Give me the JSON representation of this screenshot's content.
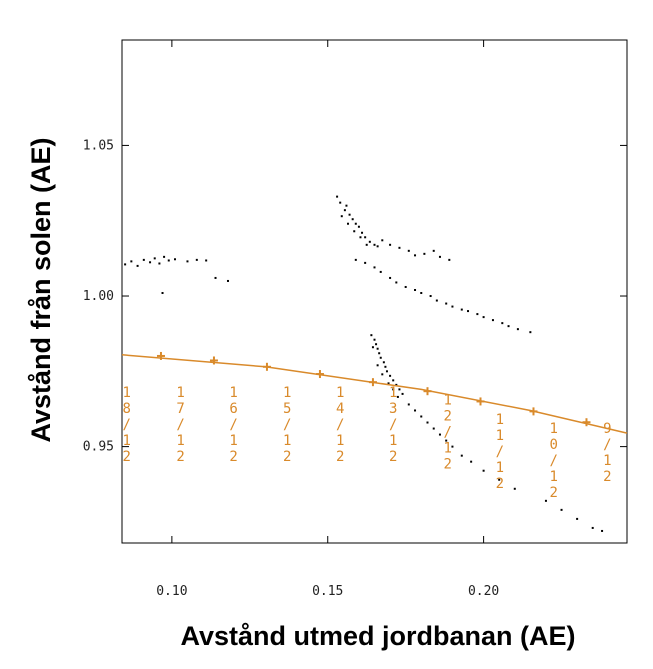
{
  "chart_data": {
    "type": "scatter",
    "title": "",
    "xlabel": "Avstånd utmed jordbanan (AE)",
    "ylabel": "Avstånd från solen (AE)",
    "xlim": [
      0.084,
      0.246
    ],
    "ylim": [
      0.918,
      1.085
    ],
    "xticks": [
      "0.10",
      "0.15",
      "0.20"
    ],
    "yticks": [
      "0.95",
      "1.00",
      "1.05"
    ],
    "grid": false,
    "accent_color": "#d98a2b",
    "point_color": "#000000",
    "resonance_line": {
      "x": [
        0.084,
        0.13,
        0.18,
        0.215,
        0.246
      ],
      "y": [
        0.9805,
        0.9765,
        0.969,
        0.962,
        0.9545
      ]
    },
    "resonances": [
      {
        "x": 0.0965,
        "y": 0.9801,
        "label": "18/12"
      },
      {
        "x": 0.1135,
        "y": 0.9786,
        "label": "17/12"
      },
      {
        "x": 0.1305,
        "y": 0.9765,
        "label": "16/12"
      },
      {
        "x": 0.1475,
        "y": 0.9741,
        "label": "15/12"
      },
      {
        "x": 0.1645,
        "y": 0.9714,
        "label": "14/12"
      },
      {
        "x": 0.182,
        "y": 0.9684,
        "label": "13/12"
      },
      {
        "x": 0.199,
        "y": 0.965,
        "label": "12/12"
      },
      {
        "x": 0.216,
        "y": 0.9617,
        "label": "11/12"
      },
      {
        "x": 0.233,
        "y": 0.9581,
        "label": "10/12"
      }
    ],
    "resonance_text": [
      {
        "x": 0.0855,
        "y": 0.9665,
        "chars": [
          "1",
          "8",
          "/",
          "1",
          "2"
        ]
      },
      {
        "x": 0.1028,
        "y": 0.9665,
        "chars": [
          "1",
          "7",
          "/",
          "1",
          "2"
        ]
      },
      {
        "x": 0.1198,
        "y": 0.9665,
        "chars": [
          "1",
          "6",
          "/",
          "1",
          "2"
        ]
      },
      {
        "x": 0.137,
        "y": 0.9665,
        "chars": [
          "1",
          "5",
          "/",
          "1",
          "2"
        ]
      },
      {
        "x": 0.154,
        "y": 0.9665,
        "chars": [
          "1",
          "4",
          "/",
          "1",
          "2"
        ]
      },
      {
        "x": 0.171,
        "y": 0.9665,
        "chars": [
          "1",
          "3",
          "/",
          "1",
          "2"
        ]
      },
      {
        "x": 0.1885,
        "y": 0.964,
        "chars": [
          "1",
          "2",
          "/",
          "1",
          "2"
        ]
      },
      {
        "x": 0.2052,
        "y": 0.9575,
        "chars": [
          "1",
          "1",
          "/",
          "1",
          "2"
        ]
      },
      {
        "x": 0.2225,
        "y": 0.9545,
        "chars": [
          "1",
          "0",
          "/",
          "1",
          "2"
        ]
      },
      {
        "x": 0.2397,
        "y": 0.9545,
        "chars": [
          "9",
          "/",
          "1",
          "2"
        ]
      }
    ],
    "particles": [
      {
        "x": 0.085,
        "y": 1.0105
      },
      {
        "x": 0.087,
        "y": 1.0115
      },
      {
        "x": 0.089,
        "y": 1.01
      },
      {
        "x": 0.091,
        "y": 1.012
      },
      {
        "x": 0.093,
        "y": 1.0112
      },
      {
        "x": 0.0945,
        "y": 1.0125
      },
      {
        "x": 0.096,
        "y": 1.0108
      },
      {
        "x": 0.0975,
        "y": 1.013
      },
      {
        "x": 0.099,
        "y": 1.0118
      },
      {
        "x": 0.101,
        "y": 1.0122
      },
      {
        "x": 0.105,
        "y": 1.0115
      },
      {
        "x": 0.108,
        "y": 1.012
      },
      {
        "x": 0.111,
        "y": 1.0118
      },
      {
        "x": 0.114,
        "y": 1.006
      },
      {
        "x": 0.118,
        "y": 1.005
      },
      {
        "x": 0.097,
        "y": 1.001
      },
      {
        "x": 0.153,
        "y": 1.033
      },
      {
        "x": 0.154,
        "y": 1.031
      },
      {
        "x": 0.1555,
        "y": 1.0285
      },
      {
        "x": 0.156,
        "y": 1.03
      },
      {
        "x": 0.157,
        "y": 1.027
      },
      {
        "x": 0.158,
        "y": 1.0255
      },
      {
        "x": 0.159,
        "y": 1.024
      },
      {
        "x": 0.16,
        "y": 1.023
      },
      {
        "x": 0.161,
        "y": 1.021
      },
      {
        "x": 0.162,
        "y": 1.0195
      },
      {
        "x": 0.1635,
        "y": 1.018
      },
      {
        "x": 0.165,
        "y": 1.017
      },
      {
        "x": 0.166,
        "y": 1.0165
      },
      {
        "x": 0.1545,
        "y": 1.0265
      },
      {
        "x": 0.1565,
        "y": 1.024
      },
      {
        "x": 0.1585,
        "y": 1.0215
      },
      {
        "x": 0.1605,
        "y": 1.0195
      },
      {
        "x": 0.1625,
        "y": 1.017
      },
      {
        "x": 0.1675,
        "y": 1.0185
      },
      {
        "x": 0.17,
        "y": 1.017
      },
      {
        "x": 0.173,
        "y": 1.016
      },
      {
        "x": 0.176,
        "y": 1.015
      },
      {
        "x": 0.178,
        "y": 1.0135
      },
      {
        "x": 0.181,
        "y": 1.014
      },
      {
        "x": 0.184,
        "y": 1.015
      },
      {
        "x": 0.186,
        "y": 1.013
      },
      {
        "x": 0.189,
        "y": 1.012
      },
      {
        "x": 0.159,
        "y": 1.012
      },
      {
        "x": 0.162,
        "y": 1.011
      },
      {
        "x": 0.165,
        "y": 1.0095
      },
      {
        "x": 0.167,
        "y": 1.008
      },
      {
        "x": 0.17,
        "y": 1.006
      },
      {
        "x": 0.172,
        "y": 1.0045
      },
      {
        "x": 0.175,
        "y": 1.003
      },
      {
        "x": 0.178,
        "y": 1.002
      },
      {
        "x": 0.18,
        "y": 1.001
      },
      {
        "x": 0.183,
        "y": 1.0
      },
      {
        "x": 0.185,
        "y": 0.9985
      },
      {
        "x": 0.188,
        "y": 0.9975
      },
      {
        "x": 0.19,
        "y": 0.9965
      },
      {
        "x": 0.193,
        "y": 0.9955
      },
      {
        "x": 0.195,
        "y": 0.995
      },
      {
        "x": 0.198,
        "y": 0.994
      },
      {
        "x": 0.2,
        "y": 0.993
      },
      {
        "x": 0.203,
        "y": 0.992
      },
      {
        "x": 0.206,
        "y": 0.991
      },
      {
        "x": 0.208,
        "y": 0.99
      },
      {
        "x": 0.211,
        "y": 0.989
      },
      {
        "x": 0.215,
        "y": 0.988
      },
      {
        "x": 0.164,
        "y": 0.987
      },
      {
        "x": 0.165,
        "y": 0.9855
      },
      {
        "x": 0.1655,
        "y": 0.984
      },
      {
        "x": 0.166,
        "y": 0.9825
      },
      {
        "x": 0.1665,
        "y": 0.981
      },
      {
        "x": 0.167,
        "y": 0.9795
      },
      {
        "x": 0.168,
        "y": 0.978
      },
      {
        "x": 0.1685,
        "y": 0.9765
      },
      {
        "x": 0.169,
        "y": 0.975
      },
      {
        "x": 0.17,
        "y": 0.9735
      },
      {
        "x": 0.171,
        "y": 0.972
      },
      {
        "x": 0.172,
        "y": 0.9705
      },
      {
        "x": 0.173,
        "y": 0.969
      },
      {
        "x": 0.174,
        "y": 0.9675
      },
      {
        "x": 0.1645,
        "y": 0.983
      },
      {
        "x": 0.166,
        "y": 0.977
      },
      {
        "x": 0.1675,
        "y": 0.974
      },
      {
        "x": 0.1695,
        "y": 0.971
      },
      {
        "x": 0.171,
        "y": 0.969
      },
      {
        "x": 0.1725,
        "y": 0.9665
      },
      {
        "x": 0.176,
        "y": 0.964
      },
      {
        "x": 0.178,
        "y": 0.962
      },
      {
        "x": 0.18,
        "y": 0.96
      },
      {
        "x": 0.182,
        "y": 0.958
      },
      {
        "x": 0.184,
        "y": 0.956
      },
      {
        "x": 0.186,
        "y": 0.954
      },
      {
        "x": 0.188,
        "y": 0.952
      },
      {
        "x": 0.19,
        "y": 0.95
      },
      {
        "x": 0.193,
        "y": 0.947
      },
      {
        "x": 0.196,
        "y": 0.945
      },
      {
        "x": 0.2,
        "y": 0.942
      },
      {
        "x": 0.205,
        "y": 0.939
      },
      {
        "x": 0.21,
        "y": 0.936
      },
      {
        "x": 0.22,
        "y": 0.932
      },
      {
        "x": 0.225,
        "y": 0.929
      },
      {
        "x": 0.23,
        "y": 0.926
      },
      {
        "x": 0.235,
        "y": 0.923
      },
      {
        "x": 0.238,
        "y": 0.922
      }
    ]
  }
}
